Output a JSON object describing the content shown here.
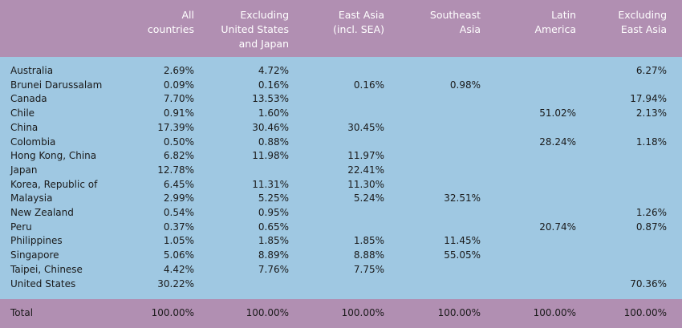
{
  "table": {
    "columns": [
      "All\ncountries",
      "Excluding\nUnited States\nand Japan",
      "East Asia\n(incl. SEA)",
      "Southeast\nAsia",
      "Latin\nAmerica",
      "Excluding\nEast Asia"
    ],
    "rows": [
      {
        "name": "Australia",
        "values": [
          "2.69%",
          "4.72%",
          "",
          "",
          "",
          "6.27%"
        ]
      },
      {
        "name": "Brunei Darussalam",
        "values": [
          "0.09%",
          "0.16%",
          "0.16%",
          "0.98%",
          "",
          ""
        ]
      },
      {
        "name": "Canada",
        "values": [
          "7.70%",
          "13.53%",
          "",
          "",
          "",
          "17.94%"
        ]
      },
      {
        "name": "Chile",
        "values": [
          "0.91%",
          "1.60%",
          "",
          "",
          "51.02%",
          "2.13%"
        ]
      },
      {
        "name": "China",
        "values": [
          "17.39%",
          "30.46%",
          "30.45%",
          "",
          "",
          ""
        ]
      },
      {
        "name": "Colombia",
        "values": [
          "0.50%",
          "0.88%",
          "",
          "",
          "28.24%",
          "1.18%"
        ]
      },
      {
        "name": "Hong Kong, China",
        "values": [
          "6.82%",
          "11.98%",
          "11.97%",
          "",
          "",
          ""
        ]
      },
      {
        "name": "Japan",
        "values": [
          "12.78%",
          "",
          "22.41%",
          "",
          "",
          ""
        ]
      },
      {
        "name": "Korea, Republic of",
        "values": [
          "6.45%",
          "11.31%",
          "11.30%",
          "",
          "",
          ""
        ]
      },
      {
        "name": "Malaysia",
        "values": [
          "2.99%",
          "5.25%",
          "5.24%",
          "32.51%",
          "",
          ""
        ]
      },
      {
        "name": "New Zealand",
        "values": [
          "0.54%",
          "0.95%",
          "",
          "",
          "",
          "1.26%"
        ]
      },
      {
        "name": "Peru",
        "values": [
          "0.37%",
          "0.65%",
          "",
          "",
          "20.74%",
          "0.87%"
        ]
      },
      {
        "name": "Philippines",
        "values": [
          "1.05%",
          "1.85%",
          "1.85%",
          "11.45%",
          "",
          ""
        ]
      },
      {
        "name": "Singapore",
        "values": [
          "5.06%",
          "8.89%",
          "8.88%",
          "55.05%",
          "",
          ""
        ]
      },
      {
        "name": "Taipei, Chinese",
        "values": [
          "4.42%",
          "7.76%",
          "7.75%",
          "",
          "",
          ""
        ]
      },
      {
        "name": "United States",
        "values": [
          "30.22%",
          "",
          "",
          "",
          "",
          "70.36%"
        ]
      }
    ],
    "total": {
      "name": "Total",
      "values": [
        "100.00%",
        "100.00%",
        "100.00%",
        "100.00%",
        "100.00%",
        "100.00%"
      ]
    }
  },
  "colors": {
    "header_band": "#b18fb2",
    "body_band": "#9fc8e2",
    "header_text": "#ffffff",
    "body_text": "#1a1a1a"
  }
}
